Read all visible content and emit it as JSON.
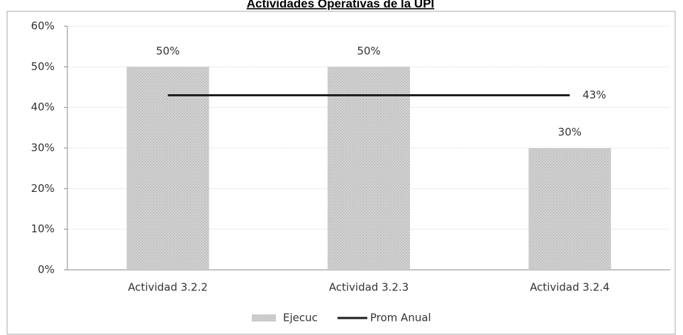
{
  "chart_data": {
    "type": "bar_line",
    "title": "Actividades Operativas de la UPI",
    "categories": [
      "Actividad 3.2.2",
      "Actividad 3.2.3",
      "Actividad 3.2.4"
    ],
    "series": [
      {
        "name": "Ejecuc",
        "type": "bar",
        "color": "#c4c4c4",
        "values": [
          50,
          50,
          30
        ],
        "value_labels": [
          "50%",
          "50%",
          "30%"
        ]
      },
      {
        "name": "Prom Anual",
        "type": "line",
        "color": "#1e1e1e",
        "values": [
          43,
          43,
          43
        ],
        "value_labels": [
          null,
          null,
          "43%"
        ]
      }
    ],
    "ylim": [
      0,
      60
    ],
    "yticks": [
      {
        "value": 0,
        "label": "0%"
      },
      {
        "value": 10,
        "label": "10%"
      },
      {
        "value": 20,
        "label": "20%"
      },
      {
        "value": 30,
        "label": "30%"
      },
      {
        "value": 40,
        "label": "40%"
      },
      {
        "value": 50,
        "label": "50%"
      },
      {
        "value": 60,
        "label": "60%"
      }
    ],
    "grid": true,
    "legend": "bottom"
  }
}
